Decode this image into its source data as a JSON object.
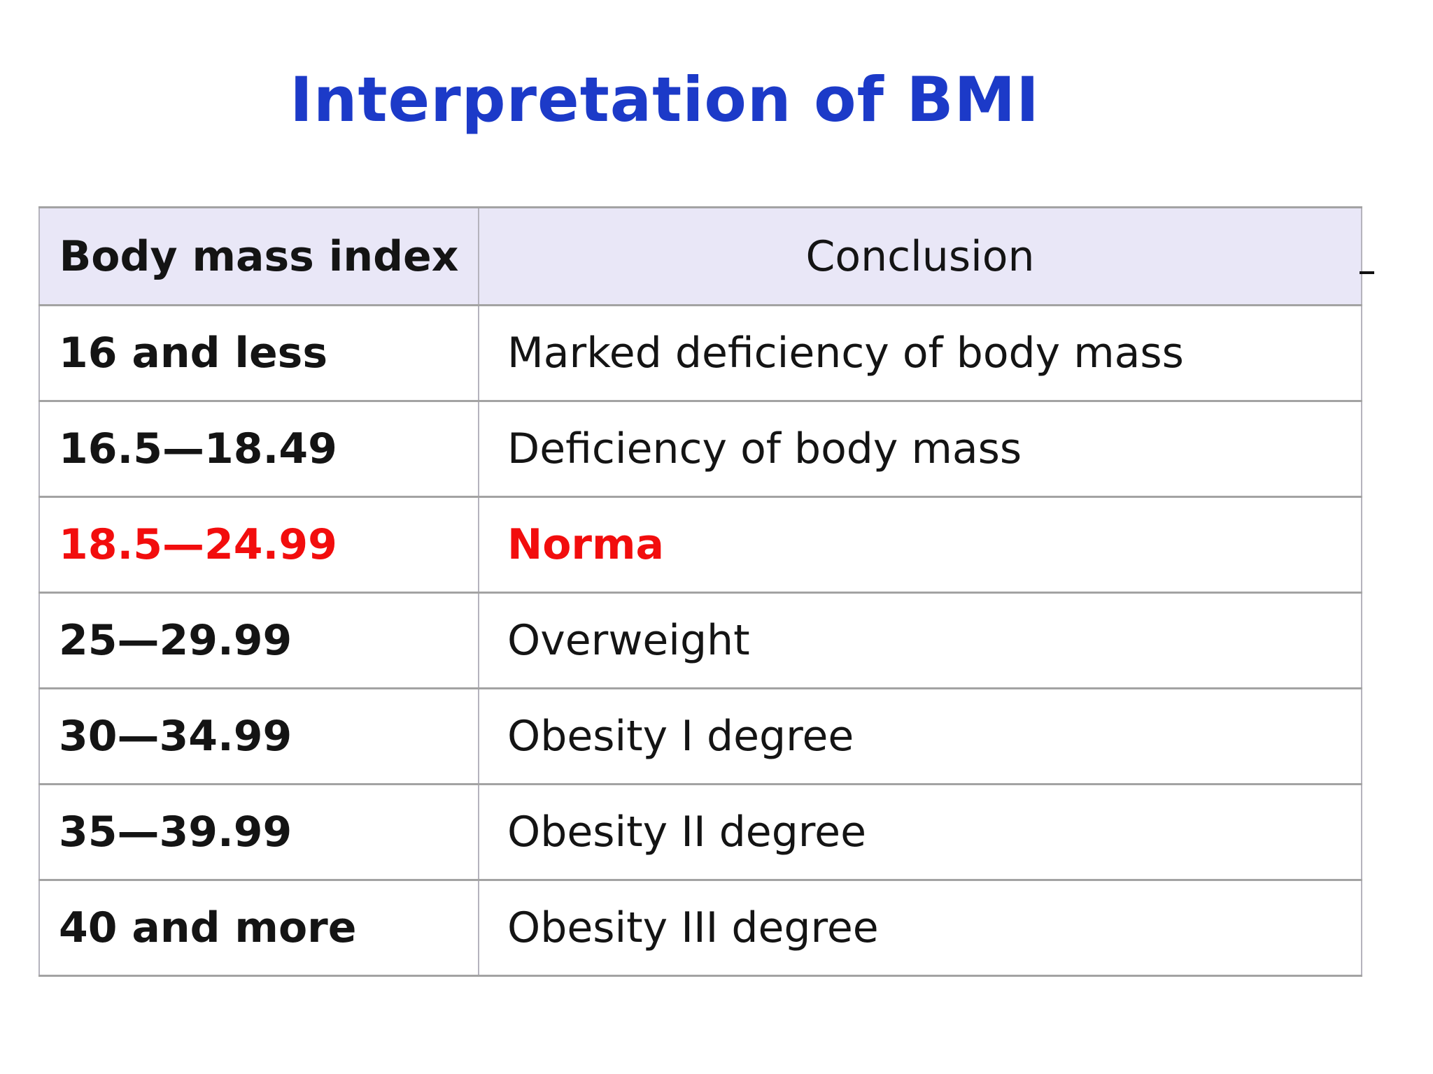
{
  "title": "Interpretation of BMI",
  "colors": {
    "title_blue": "#1c3ac8",
    "highlight_red": "#f20d0d",
    "header_background": "#e9e7f7",
    "table_border": "#a3a3a3",
    "body_text": "#141414"
  },
  "table": {
    "headers": [
      "Body mass index",
      "Conclusion"
    ],
    "rows": [
      {
        "bmi": "16 and less",
        "conclusion": "Marked deficiency of body mass",
        "highlight": false
      },
      {
        "bmi": "16.5—18.49",
        "conclusion": "Deficiency of body mass",
        "highlight": false
      },
      {
        "bmi": "18.5—24.99",
        "conclusion": "Norma",
        "highlight": true
      },
      {
        "bmi": "25—29.99",
        "conclusion": "Overweight",
        "highlight": false
      },
      {
        "bmi": "30—34.99",
        "conclusion": "Obesity I degree",
        "highlight": false
      },
      {
        "bmi": "35—39.99",
        "conclusion": "Obesity II degree",
        "highlight": false
      },
      {
        "bmi": "40 and more",
        "conclusion": "Obesity III degree",
        "highlight": false
      }
    ]
  }
}
